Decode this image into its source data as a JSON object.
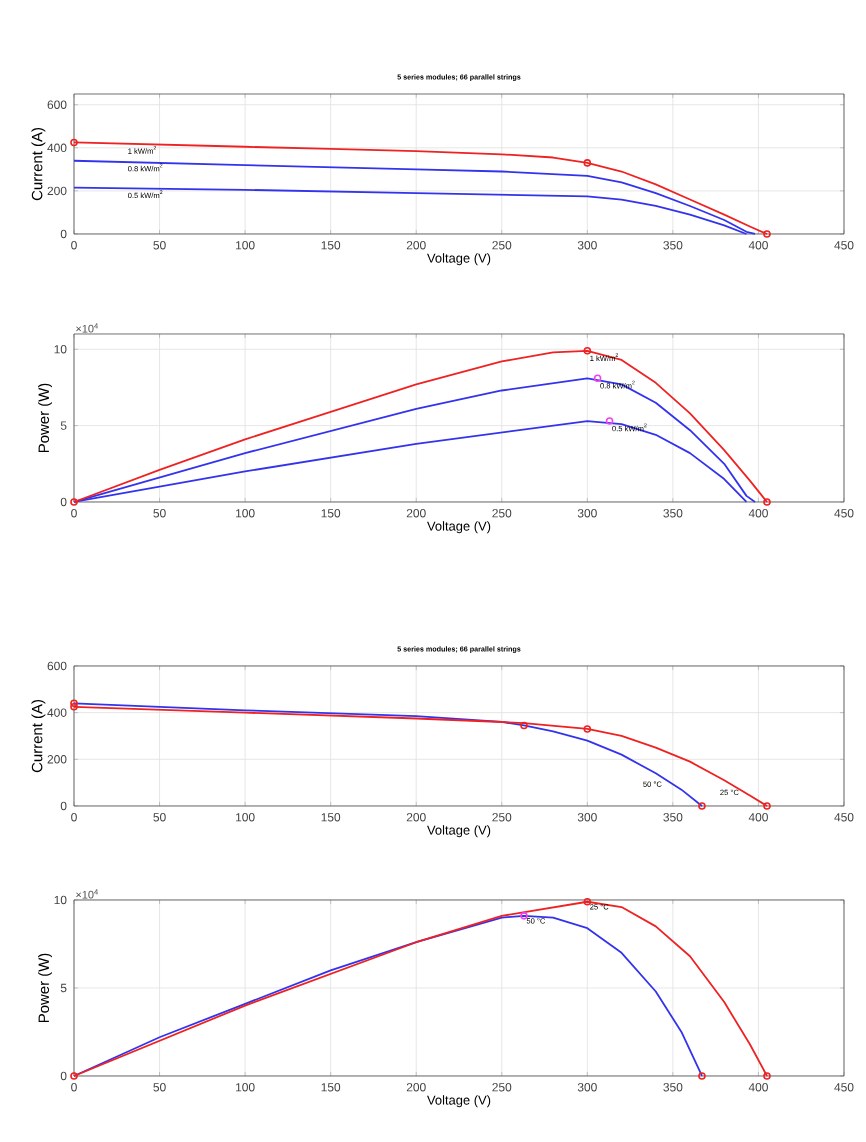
{
  "chart_data": [
    {
      "type": "line",
      "title": "5 series modules; 66 parallel strings",
      "xlabel": "Voltage (V)",
      "ylabel": "Current (A)",
      "xlim": [
        0,
        450
      ],
      "xticks": [
        0,
        50,
        100,
        150,
        200,
        250,
        300,
        350,
        400,
        450
      ],
      "ylim": [
        0,
        650
      ],
      "yticks": [
        0,
        200,
        400,
        600
      ],
      "grid": true,
      "series": [
        {
          "color": "#3333ee",
          "x": [
            0,
            100,
            200,
            250,
            300,
            320,
            340,
            360,
            380,
            393,
            398
          ],
          "values": [
            340,
            320,
            300,
            290,
            270,
            240,
            190,
            130,
            65,
            10,
            0
          ]
        },
        {
          "color": "#3333ee",
          "x": [
            0,
            100,
            200,
            300,
            320,
            340,
            360,
            380,
            393
          ],
          "values": [
            215,
            205,
            190,
            175,
            160,
            130,
            90,
            40,
            0
          ]
        },
        {
          "color": "#ee2222",
          "x": [
            0,
            50,
            100,
            150,
            200,
            250,
            280,
            300,
            320,
            340,
            360,
            380,
            395,
            405
          ],
          "values": [
            425,
            415,
            405,
            395,
            385,
            370,
            355,
            330,
            290,
            230,
            160,
            90,
            35,
            0
          ]
        },
        {
          "type": "scatter",
          "marker": "circle",
          "color": "#ee2222",
          "x": [
            0,
            300,
            405
          ],
          "values": [
            425,
            330,
            0
          ]
        }
      ],
      "annotations": [
        {
          "text": "1 kW/m$^{2}$",
          "x": 30,
          "y": 420
        },
        {
          "text": "0.8 kW/m$^{2}$",
          "x": 30,
          "y": 338
        },
        {
          "text": "0.5 kW/m$^{2}$",
          "x": 30,
          "y": 214
        }
      ]
    },
    {
      "type": "line",
      "xlabel": "Voltage (V)",
      "ylabel": "Power (W)",
      "xlim": [
        0,
        450
      ],
      "xticks": [
        0,
        50,
        100,
        150,
        200,
        250,
        300,
        350,
        400,
        450
      ],
      "ylim": [
        0,
        11
      ],
      "yticks": [
        0,
        5,
        10
      ],
      "grid": true,
      "series": [
        {
          "color": "#3333ee",
          "x": [
            0,
            100,
            200,
            250,
            300,
            320,
            340,
            360,
            380,
            393,
            398
          ],
          "values": [
            0,
            3.2,
            6.1,
            7.3,
            8.1,
            7.7,
            6.5,
            4.7,
            2.5,
            0.4,
            0
          ]
        },
        {
          "color": "#3333ee",
          "x": [
            0,
            100,
            200,
            300,
            320,
            340,
            360,
            380,
            393
          ],
          "values": [
            0,
            2.0,
            3.8,
            5.3,
            5.1,
            4.4,
            3.2,
            1.5,
            0
          ]
        },
        {
          "color": "#ee2222",
          "x": [
            0,
            50,
            100,
            150,
            200,
            250,
            280,
            300,
            320,
            340,
            360,
            380,
            395,
            405
          ],
          "values": [
            0,
            2.1,
            4.1,
            5.9,
            7.7,
            9.2,
            9.8,
            9.9,
            9.3,
            7.8,
            5.8,
            3.4,
            1.4,
            0
          ]
        },
        {
          "type": "scatter",
          "marker": "circle",
          "color": "#ee2222",
          "x": [
            0,
            300,
            405
          ],
          "values": [
            0,
            9.9,
            0
          ]
        },
        {
          "type": "scatter",
          "marker": "circle",
          "color": "#ee44ee",
          "x": [
            306,
            313
          ],
          "values": [
            8.1,
            5.3
          ]
        }
      ],
      "annotations": [
        "×10$^{4}$",
        {
          "text": "1 kW/m$^{2}$",
          "x": 300,
          "y": 9.9
        },
        {
          "text": "0.8 kW/m$^{2}$",
          "x": 306,
          "y": 8.1
        },
        {
          "text": "0.5 kW/m$^{2}$",
          "x": 313,
          "y": 5.3
        }
      ]
    },
    {
      "type": "line",
      "title": "5 series modules; 66 parallel strings",
      "xlabel": "Voltage (V)",
      "ylabel": "Current (A)",
      "xlim": [
        0,
        450
      ],
      "xticks": [
        0,
        50,
        100,
        150,
        200,
        250,
        300,
        350,
        400,
        450
      ],
      "ylim": [
        0,
        600
      ],
      "yticks": [
        0,
        200,
        400,
        600
      ],
      "grid": true,
      "series": [
        {
          "color": "#3333ee",
          "x": [
            0,
            100,
            200,
            250,
            263,
            280,
            300,
            320,
            340,
            355,
            367
          ],
          "values": [
            440,
            410,
            385,
            360,
            345,
            320,
            280,
            220,
            140,
            70,
            0
          ]
        },
        {
          "color": "#ee2222",
          "x": [
            0,
            100,
            200,
            250,
            263,
            300,
            320,
            340,
            360,
            380,
            395,
            405
          ],
          "values": [
            425,
            400,
            375,
            360,
            355,
            330,
            300,
            250,
            190,
            110,
            45,
            0
          ]
        },
        {
          "type": "scatter",
          "marker": "circle",
          "color": "#ee2222",
          "x": [
            0,
            0,
            263,
            300,
            367,
            405
          ],
          "values": [
            440,
            425,
            345,
            330,
            0,
            0
          ]
        }
      ],
      "annotations": [
        {
          "text": "50 °C",
          "x": 345,
          "y": 115
        },
        {
          "text": "25 °C",
          "x": 390,
          "y": 80
        }
      ]
    },
    {
      "type": "line",
      "xlabel": "Voltage (V)",
      "ylabel": "Power (W)",
      "xlim": [
        0,
        450
      ],
      "xticks": [
        0,
        50,
        100,
        150,
        200,
        250,
        300,
        350,
        400,
        450
      ],
      "ylim": [
        0,
        10
      ],
      "yticks": [
        0,
        5,
        10
      ],
      "grid": true,
      "series": [
        {
          "color": "#3333ee",
          "x": [
            0,
            50,
            100,
            150,
            200,
            250,
            263,
            280,
            300,
            320,
            340,
            355,
            367
          ],
          "values": [
            0,
            2.2,
            4.1,
            6.0,
            7.6,
            9.0,
            9.1,
            9.0,
            8.4,
            7.0,
            4.8,
            2.5,
            0
          ]
        },
        {
          "color": "#ee2222",
          "x": [
            0,
            100,
            200,
            250,
            300,
            320,
            340,
            360,
            380,
            395,
            405
          ],
          "values": [
            0,
            4.0,
            7.6,
            9.1,
            9.9,
            9.6,
            8.5,
            6.8,
            4.2,
            1.8,
            0
          ]
        },
        {
          "type": "scatter",
          "marker": "circle",
          "color": "#ee2222",
          "x": [
            0,
            300,
            367,
            405
          ],
          "values": [
            0,
            9.9,
            0,
            0
          ]
        },
        {
          "type": "scatter",
          "marker": "circle",
          "color": "#ee44ee",
          "x": [
            263
          ],
          "values": [
            9.1
          ]
        }
      ],
      "annotations": [
        "×10$^{4}$",
        {
          "text": "50 °C",
          "x": 263,
          "y": 9.1
        },
        {
          "text": "25 °C",
          "x": 300,
          "y": 9.9
        }
      ]
    }
  ]
}
